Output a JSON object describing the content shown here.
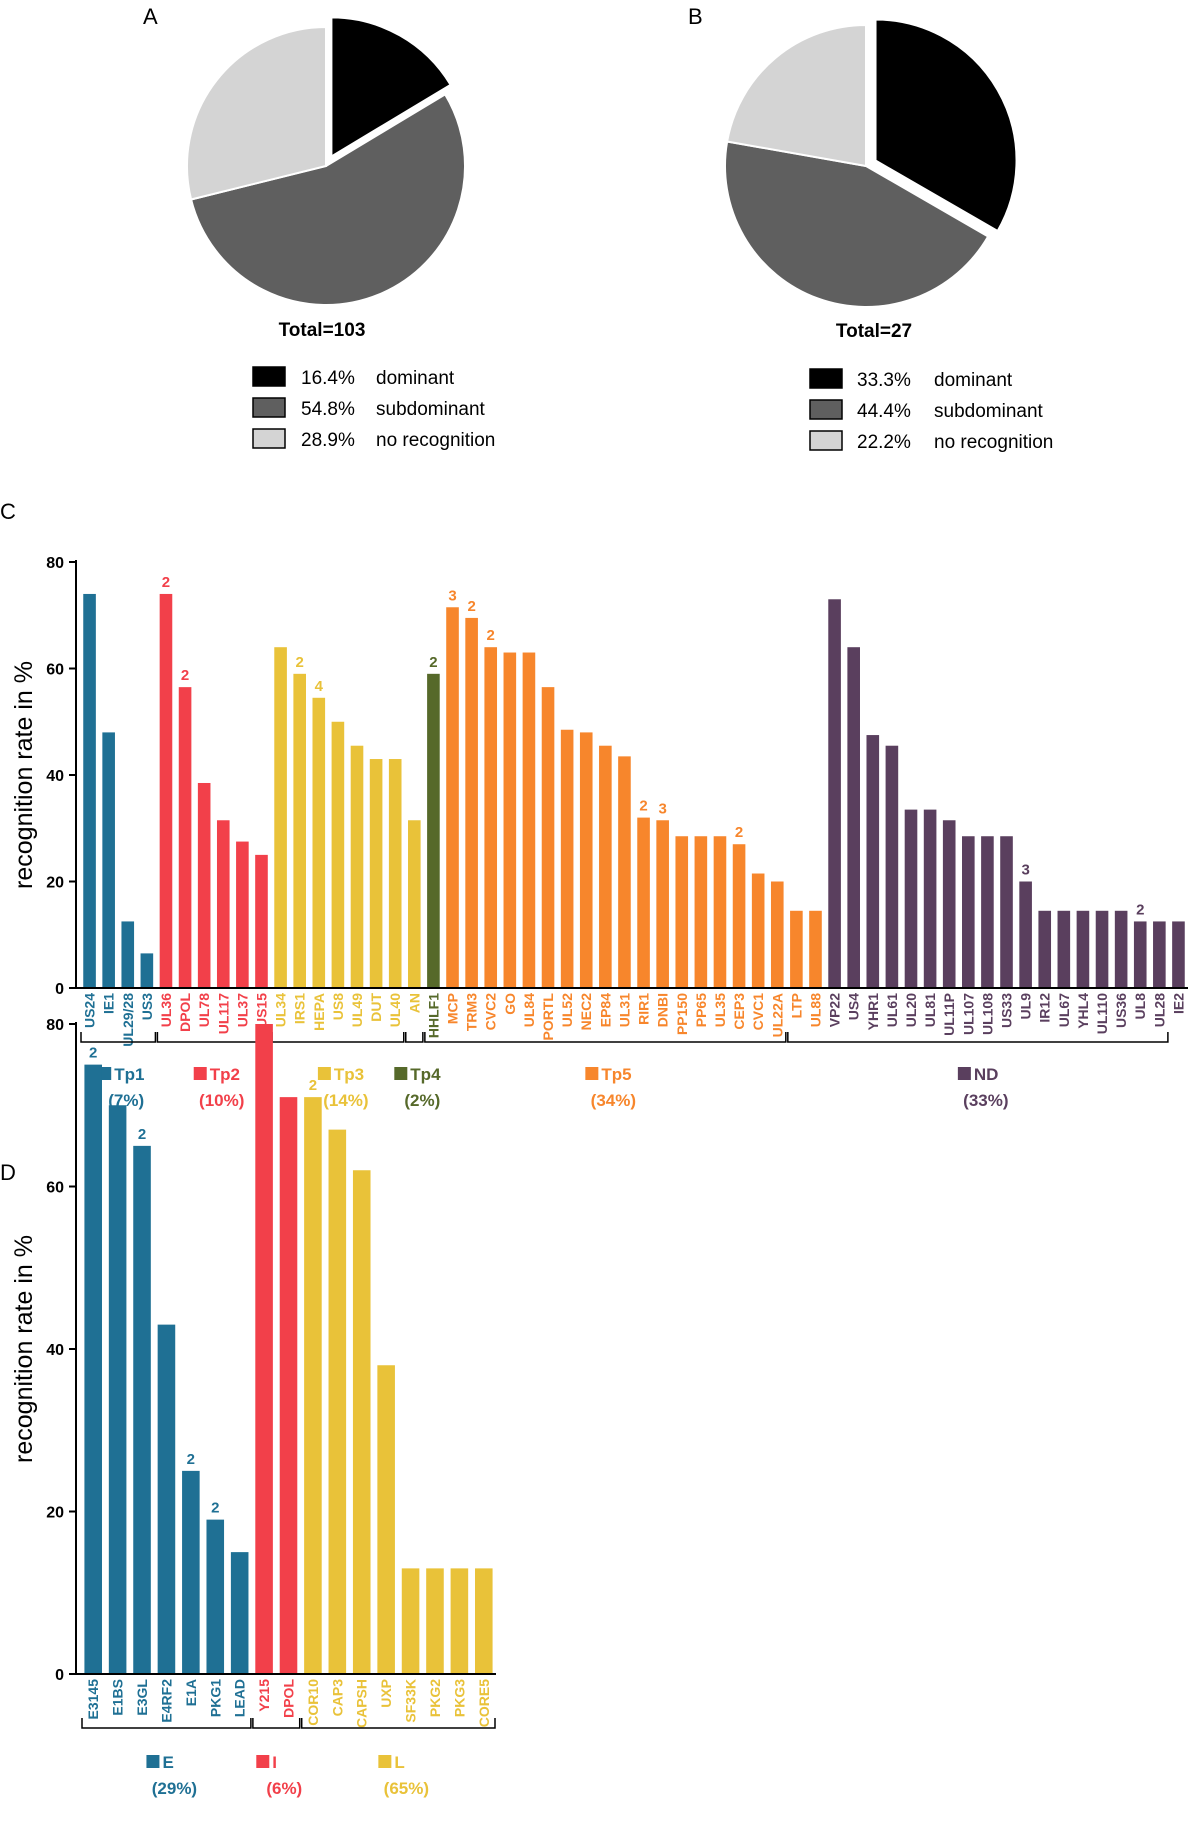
{
  "panels": {
    "A": {
      "letter": "A",
      "total": "Total=103",
      "legend": [
        {
          "pct": "16.4%",
          "label": "dominant",
          "color": "#000000"
        },
        {
          "pct": "54.8%",
          "label": "subdominant",
          "color": "#5f5f5f"
        },
        {
          "pct": "28.9%",
          "label": "no recognition",
          "color": "#d4d4d4"
        }
      ]
    },
    "B": {
      "letter": "B",
      "total": "Total=27",
      "legend": [
        {
          "pct": "33.3%",
          "label": "dominant",
          "color": "#000000"
        },
        {
          "pct": "44.4%",
          "label": "subdominant",
          "color": "#5f5f5f"
        },
        {
          "pct": "22.2%",
          "label": "no recognition",
          "color": "#d4d4d4"
        }
      ]
    },
    "C": {
      "letter": "C"
    },
    "D": {
      "letter": "D"
    }
  },
  "chart_data": [
    {
      "id": "A",
      "type": "pie",
      "total": 103,
      "slices": [
        {
          "label": "dominant",
          "value": 16.4,
          "color": "#000000",
          "exploded": true
        },
        {
          "label": "subdominant",
          "value": 54.8,
          "color": "#5f5f5f"
        },
        {
          "label": "no recognition",
          "value": 28.9,
          "color": "#d4d4d4"
        }
      ]
    },
    {
      "id": "B",
      "type": "pie",
      "total": 27,
      "slices": [
        {
          "label": "dominant",
          "value": 33.3,
          "color": "#000000",
          "exploded": true
        },
        {
          "label": "subdominant",
          "value": 44.4,
          "color": "#5f5f5f"
        },
        {
          "label": "no recognition",
          "value": 22.2,
          "color": "#d4d4d4"
        }
      ]
    },
    {
      "id": "C",
      "type": "bar",
      "ylabel": "recognition rate in %",
      "ylim": [
        0,
        80
      ],
      "yticks": [
        0,
        20,
        40,
        60,
        80
      ],
      "groups": [
        {
          "name": "Tp1",
          "pct": "(7%)",
          "color": "#1f7094",
          "start": 0,
          "end": 3
        },
        {
          "name": "Tp2",
          "pct": "(10%)",
          "color": "#f2404a",
          "start": 4,
          "end": 9
        },
        {
          "name": "Tp3",
          "pct": "(14%)",
          "color": "#e9c239",
          "start": 10,
          "end": 16
        },
        {
          "name": "Tp4",
          "pct": "(2%)",
          "color": "#56692a",
          "start": 17,
          "end": 17
        },
        {
          "name": "Tp5",
          "pct": "(34%)",
          "color": "#f7862c",
          "start": 18,
          "end": 36
        },
        {
          "name": "ND",
          "pct": "(33%)",
          "color": "#5a3f5e",
          "start": 37,
          "end": 56
        }
      ],
      "bars": [
        {
          "label": "US24",
          "value": 74,
          "group": 0
        },
        {
          "label": "IE1",
          "value": 48,
          "group": 0
        },
        {
          "label": "UL29/28",
          "value": 12.5,
          "group": 0
        },
        {
          "label": "US3",
          "value": 6.5,
          "group": 0
        },
        {
          "label": "UL36",
          "value": 74,
          "group": 1,
          "note": "2"
        },
        {
          "label": "DPOL",
          "value": 56.5,
          "group": 1,
          "note": "2"
        },
        {
          "label": "UL78",
          "value": 38.5,
          "group": 1
        },
        {
          "label": "UL117",
          "value": 31.5,
          "group": 1
        },
        {
          "label": "UL37",
          "value": 27.5,
          "group": 1
        },
        {
          "label": "US15",
          "value": 25,
          "group": 1
        },
        {
          "label": "UL34",
          "value": 64,
          "group": 2
        },
        {
          "label": "IRS1",
          "value": 59,
          "group": 2,
          "note": "2"
        },
        {
          "label": "HEPA",
          "value": 54.5,
          "group": 2,
          "note": "4"
        },
        {
          "label": "US8",
          "value": 50,
          "group": 2
        },
        {
          "label": "UL49",
          "value": 45.5,
          "group": 2
        },
        {
          "label": "DUT",
          "value": 43,
          "group": 2
        },
        {
          "label": "UL40",
          "value": 43,
          "group": 2
        },
        {
          "label": "AN",
          "value": 31.5,
          "group": 2
        },
        {
          "label": "HHLF1",
          "value": 59,
          "group": 3,
          "note": "2"
        },
        {
          "label": "MCP",
          "value": 71.5,
          "group": 4,
          "note": "3"
        },
        {
          "label": "TRM3",
          "value": 69.5,
          "group": 4,
          "note": "2"
        },
        {
          "label": "CVC2",
          "value": 64,
          "group": 4,
          "note": "2"
        },
        {
          "label": "GO",
          "value": 63,
          "group": 4
        },
        {
          "label": "UL84",
          "value": 63,
          "group": 4
        },
        {
          "label": "PORTL",
          "value": 56.5,
          "group": 4
        },
        {
          "label": "UL52",
          "value": 48.5,
          "group": 4
        },
        {
          "label": "NEC2",
          "value": 48,
          "group": 4
        },
        {
          "label": "EP84",
          "value": 45.5,
          "group": 4
        },
        {
          "label": "UL31",
          "value": 43.5,
          "group": 4
        },
        {
          "label": "RIR1",
          "value": 32,
          "group": 4,
          "note": "2"
        },
        {
          "label": "DNBI",
          "value": 31.5,
          "group": 4,
          "note": "3"
        },
        {
          "label": "PP150",
          "value": 28.5,
          "group": 4
        },
        {
          "label": "PP65",
          "value": 28.5,
          "group": 4
        },
        {
          "label": "UL35",
          "value": 28.5,
          "group": 4
        },
        {
          "label": "CEP3",
          "value": 27,
          "group": 4,
          "note": "2"
        },
        {
          "label": "CVC1",
          "value": 21.5,
          "group": 4
        },
        {
          "label": "UL22A",
          "value": 20,
          "group": 4
        },
        {
          "label": "LTP",
          "value": 14.5,
          "group": 4
        },
        {
          "label": "UL88",
          "value": 14.5,
          "group": 4
        },
        {
          "label": "VP22",
          "value": 73,
          "group": 5
        },
        {
          "label": "US4",
          "value": 64,
          "group": 5
        },
        {
          "label": "YHR1",
          "value": 47.5,
          "group": 5
        },
        {
          "label": "UL61",
          "value": 45.5,
          "group": 5
        },
        {
          "label": "UL20",
          "value": 33.5,
          "group": 5
        },
        {
          "label": "UL81",
          "value": 33.5,
          "group": 5
        },
        {
          "label": "UL11P",
          "value": 31.5,
          "group": 5
        },
        {
          "label": "UL107",
          "value": 28.5,
          "group": 5
        },
        {
          "label": "UL108",
          "value": 28.5,
          "group": 5
        },
        {
          "label": "US33",
          "value": 28.5,
          "group": 5
        },
        {
          "label": "UL9",
          "value": 20,
          "group": 5,
          "note": "3"
        },
        {
          "label": "IR12",
          "value": 14.5,
          "group": 5
        },
        {
          "label": "UL67",
          "value": 14.5,
          "group": 5
        },
        {
          "label": "YHL4",
          "value": 14.5,
          "group": 5
        },
        {
          "label": "UL110",
          "value": 14.5,
          "group": 5
        },
        {
          "label": "US36",
          "value": 14.5,
          "group": 5
        },
        {
          "label": "UL8",
          "value": 12.5,
          "group": 5,
          "note": "2"
        },
        {
          "label": "UL28",
          "value": 12.5,
          "group": 5
        },
        {
          "label": "IE2",
          "value": 12.5,
          "group": 5
        }
      ]
    },
    {
      "id": "D",
      "type": "bar",
      "ylabel": "recognition rate in %",
      "ylim": [
        0,
        80
      ],
      "yticks": [
        0,
        20,
        40,
        60,
        80
      ],
      "groups": [
        {
          "name": "E",
          "pct": "(29%)",
          "color": "#1f7094",
          "start": 0,
          "end": 6
        },
        {
          "name": "I",
          "pct": "(6%)",
          "color": "#f2404a",
          "start": 7,
          "end": 8
        },
        {
          "name": "L",
          "pct": "(65%)",
          "color": "#e9c239",
          "start": 9,
          "end": 16
        }
      ],
      "bars": [
        {
          "label": "E3145",
          "value": 75,
          "group": 0,
          "note": "2"
        },
        {
          "label": "E1BS",
          "value": 70,
          "group": 0
        },
        {
          "label": "E3GL",
          "value": 65,
          "group": 0,
          "note": "2"
        },
        {
          "label": "E4RF2",
          "value": 43,
          "group": 0
        },
        {
          "label": "E1A",
          "value": 25,
          "group": 0,
          "note": "2"
        },
        {
          "label": "PKG1",
          "value": 19,
          "group": 0,
          "note": "2"
        },
        {
          "label": "LEAD",
          "value": 15,
          "group": 0
        },
        {
          "label": "Y215",
          "value": 80,
          "group": 1
        },
        {
          "label": "DPOL",
          "value": 71,
          "group": 1
        },
        {
          "label": "COR10",
          "value": 71,
          "group": 2,
          "note": "2"
        },
        {
          "label": "CAP3",
          "value": 67,
          "group": 2
        },
        {
          "label": "CAPSH",
          "value": 62,
          "group": 2
        },
        {
          "label": "UXP",
          "value": 38,
          "group": 2
        },
        {
          "label": "SF33K",
          "value": 13,
          "group": 2
        },
        {
          "label": "PKG2",
          "value": 13,
          "group": 2
        },
        {
          "label": "PKG3",
          "value": 13,
          "group": 2
        },
        {
          "label": "CORE5",
          "value": 13,
          "group": 2
        }
      ]
    }
  ]
}
